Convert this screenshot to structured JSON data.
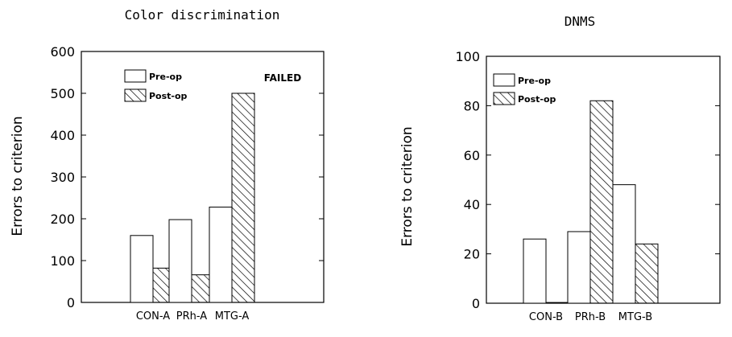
{
  "chart_data": [
    {
      "type": "bar",
      "title": "Color discrimination",
      "ylabel": "Errors to criterion",
      "ylim": [
        0,
        600
      ],
      "yticks": [
        "0",
        "100",
        "200",
        "300",
        "400",
        "500",
        "600"
      ],
      "categories": [
        "CON-A",
        "PRh-A",
        "MTG-A"
      ],
      "series": [
        {
          "name": "Pre-op",
          "values": [
            160,
            198,
            228
          ]
        },
        {
          "name": "Post-op",
          "values": [
            82,
            66,
            500
          ]
        }
      ],
      "annotations": [
        {
          "text": "FAILED",
          "category": "MTG-A"
        }
      ],
      "legend": "top-left",
      "grid": false
    },
    {
      "type": "bar",
      "title": "DNMS",
      "ylabel": "Errors to criterion",
      "ylim": [
        0,
        100
      ],
      "yticks": [
        "0",
        "20",
        "40",
        "60",
        "80",
        "100"
      ],
      "categories": [
        "CON-B",
        "PRh-B",
        "MTG-B"
      ],
      "series": [
        {
          "name": "Pre-op",
          "values": [
            26,
            29,
            48
          ]
        },
        {
          "name": "Post-op",
          "values": [
            0.3,
            82,
            24
          ]
        }
      ],
      "annotations": [],
      "legend": "top-left",
      "grid": false
    }
  ]
}
